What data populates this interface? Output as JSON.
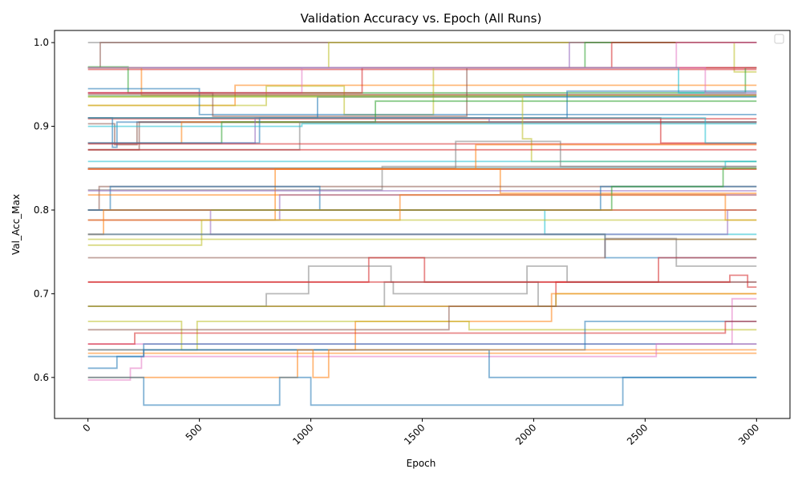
{
  "chart_data": {
    "type": "line",
    "title": "Validation Accuracy vs. Epoch (All Runs)",
    "xlabel": "Epoch",
    "ylabel": "Val_Acc_Max",
    "xlim": [
      -150,
      3150
    ],
    "ylim": [
      0.551,
      1.0145
    ],
    "x_ticks": [
      0,
      500,
      1000,
      1500,
      2000,
      2500,
      3000
    ],
    "x_tick_labels": [
      "0",
      "500",
      "1000",
      "1500",
      "2000",
      "2500",
      "3000"
    ],
    "y_ticks": [
      0.6,
      0.7,
      0.8,
      0.9,
      1.0
    ],
    "y_tick_labels": [
      "0.6",
      "0.7",
      "0.8",
      "0.9",
      "1.0"
    ],
    "grid": false,
    "legend": "top-right (empty)",
    "line_style": "step-post",
    "series_opacity": 0.55,
    "palette": [
      "#1f77b4",
      "#ff7f0e",
      "#2ca02c",
      "#d62728",
      "#9467bd",
      "#8c564b",
      "#e377c2",
      "#7f7f7f",
      "#bcbd22",
      "#17becf"
    ],
    "series": [
      {
        "color": "#7f7f7f",
        "x": [
          0,
          3000
        ],
        "values": [
          1.0,
          1.0
        ]
      },
      {
        "color": "#8c564b",
        "x": [
          0,
          55,
          3000
        ],
        "values": [
          0.97,
          1.0,
          1.0
        ]
      },
      {
        "color": "#bcbd22",
        "x": [
          0,
          1080,
          2900,
          3000
        ],
        "values": [
          0.97,
          1.0,
          0.965,
          0.965
        ]
      },
      {
        "color": "#9467bd",
        "x": [
          0,
          2160,
          3000
        ],
        "values": [
          0.97,
          1.0,
          1.0
        ]
      },
      {
        "color": "#2ca02c",
        "x": [
          0,
          2230,
          3000
        ],
        "values": [
          0.97,
          1.0,
          1.0
        ]
      },
      {
        "color": "#d62728",
        "x": [
          0,
          2350,
          3000
        ],
        "values": [
          0.97,
          1.0,
          1.0
        ]
      },
      {
        "color": "#e377c2",
        "x": [
          0,
          2640,
          3000
        ],
        "values": [
          0.97,
          1.0,
          1.0
        ]
      },
      {
        "color": "#d62728",
        "x": [
          0,
          3000
        ],
        "values": [
          0.968,
          0.968
        ]
      },
      {
        "color": "#2ca02c",
        "x": [
          0,
          180,
          2950,
          3000
        ],
        "values": [
          0.971,
          0.94,
          0.97,
          0.97
        ]
      },
      {
        "color": "#ff7f0e",
        "x": [
          0,
          240,
          3000
        ],
        "values": [
          0.97,
          0.937,
          0.937
        ]
      },
      {
        "color": "#ff7f0e",
        "x": [
          0,
          660,
          3000
        ],
        "values": [
          0.925,
          0.949,
          0.949
        ]
      },
      {
        "color": "#bcbd22",
        "x": [
          0,
          800,
          1150,
          1550,
          3000
        ],
        "values": [
          0.925,
          0.948,
          0.914,
          0.97,
          0.97
        ]
      },
      {
        "color": "#1f77b4",
        "x": [
          0,
          500,
          3000
        ],
        "values": [
          0.945,
          0.914,
          0.914
        ]
      },
      {
        "color": "#8c564b",
        "x": [
          0,
          560,
          1700,
          3000
        ],
        "values": [
          0.94,
          0.912,
          0.97,
          0.97
        ]
      },
      {
        "color": "#2ca02c",
        "x": [
          0,
          3000
        ],
        "values": [
          0.936,
          0.936
        ]
      },
      {
        "color": "#8c564b",
        "x": [
          0,
          3000
        ],
        "values": [
          0.938,
          0.938
        ]
      },
      {
        "color": "#d62728",
        "x": [
          0,
          3000
        ],
        "values": [
          0.909,
          0.909
        ]
      },
      {
        "color": "#e377c2",
        "x": [
          0,
          960,
          3000
        ],
        "values": [
          0.94,
          0.97,
          0.97
        ]
      },
      {
        "color": "#d62728",
        "x": [
          0,
          1230,
          3000
        ],
        "values": [
          0.94,
          0.97,
          0.97
        ]
      },
      {
        "color": "#17becf",
        "x": [
          0,
          2650,
          3000
        ],
        "values": [
          0.97,
          0.94,
          0.94
        ]
      },
      {
        "color": "#e377c2",
        "x": [
          0,
          2770,
          3000
        ],
        "values": [
          0.97,
          0.94,
          0.94
        ]
      },
      {
        "color": "#1f77b4",
        "x": [
          0,
          2150,
          3000
        ],
        "values": [
          0.91,
          0.942,
          0.942
        ]
      },
      {
        "color": "#8c564b",
        "x": [
          0,
          120,
          220,
          3000
        ],
        "values": [
          0.903,
          0.878,
          0.905,
          0.905
        ]
      },
      {
        "color": "#1f77b4",
        "x": [
          0,
          110,
          130,
          3000
        ],
        "values": [
          0.91,
          0.875,
          0.905,
          0.905
        ]
      },
      {
        "color": "#8c564b",
        "x": [
          0,
          230,
          3000
        ],
        "values": [
          0.872,
          0.905,
          0.905
        ]
      },
      {
        "color": "#ff7f0e",
        "x": [
          0,
          420,
          3000
        ],
        "values": [
          0.88,
          0.905,
          0.905
        ]
      },
      {
        "color": "#2ca02c",
        "x": [
          0,
          600,
          1290,
          3000
        ],
        "values": [
          0.88,
          0.905,
          0.93,
          0.93
        ]
      },
      {
        "color": "#9467bd",
        "x": [
          0,
          750,
          1800,
          3000
        ],
        "values": [
          0.88,
          0.91,
          0.905,
          0.905
        ]
      },
      {
        "color": "#1f77b4",
        "x": [
          0,
          770,
          1030,
          3000
        ],
        "values": [
          0.88,
          0.91,
          0.935,
          0.935
        ]
      },
      {
        "color": "#7f7f7f",
        "x": [
          0,
          950,
          3000
        ],
        "values": [
          0.872,
          0.905,
          0.905
        ]
      },
      {
        "color": "#17becf",
        "x": [
          0,
          960,
          3000
        ],
        "values": [
          0.9,
          0.903,
          0.903
        ]
      },
      {
        "color": "#d62728",
        "x": [
          0,
          2570,
          3000
        ],
        "values": [
          0.91,
          0.88,
          0.88
        ]
      },
      {
        "color": "#17becf",
        "x": [
          0,
          2770,
          3000
        ],
        "values": [
          0.91,
          0.88,
          0.88
        ]
      },
      {
        "color": "#bcbd22",
        "x": [
          0,
          1950,
          1990,
          3000
        ],
        "values": [
          0.935,
          0.885,
          0.858,
          0.858
        ]
      },
      {
        "color": "#d62728",
        "x": [
          0,
          3000
        ],
        "values": [
          0.879,
          0.879
        ]
      },
      {
        "color": "#d62728",
        "x": [
          0,
          3000
        ],
        "values": [
          0.872,
          0.872
        ]
      },
      {
        "color": "#17becf",
        "x": [
          0,
          3000
        ],
        "values": [
          0.858,
          0.858
        ]
      },
      {
        "color": "#1f77b4",
        "x": [
          0,
          180,
          3000
        ],
        "values": [
          0.849,
          0.849,
          0.849
        ]
      },
      {
        "color": "#17becf",
        "x": [
          0,
          2860,
          3000
        ],
        "values": [
          0.85,
          0.858,
          0.858
        ]
      },
      {
        "color": "#7f7f7f",
        "x": [
          0,
          1320,
          2120,
          3000
        ],
        "values": [
          0.824,
          0.852,
          0.852,
          0.852
        ]
      },
      {
        "color": "#7f7f7f",
        "x": [
          0,
          1650,
          2120,
          3000
        ],
        "values": [
          0.85,
          0.882,
          0.852,
          0.852
        ]
      },
      {
        "color": "#d62728",
        "x": [
          0,
          3000
        ],
        "values": [
          0.849,
          0.849
        ]
      },
      {
        "color": "#ff7f0e",
        "x": [
          0,
          1740,
          3000
        ],
        "values": [
          0.849,
          0.878,
          0.878
        ]
      },
      {
        "color": "#e377c2",
        "x": [
          0,
          2340,
          3000
        ],
        "values": [
          0.849,
          0.849,
          0.849
        ]
      },
      {
        "color": "#ff7f0e",
        "x": [
          0,
          840,
          3000
        ],
        "values": [
          0.788,
          0.849,
          0.849
        ]
      },
      {
        "color": "#ff7f0e",
        "x": [
          0,
          1850,
          3000
        ],
        "values": [
          0.849,
          0.82,
          0.82
        ]
      },
      {
        "color": "#8c564b",
        "x": [
          0,
          50,
          3000
        ],
        "values": [
          0.8,
          0.828,
          0.828
        ]
      },
      {
        "color": "#1f77b4",
        "x": [
          0,
          100,
          1040,
          3000
        ],
        "values": [
          0.8,
          0.828,
          0.8,
          0.8
        ]
      },
      {
        "color": "#ff7f0e",
        "x": [
          0,
          3000
        ],
        "values": [
          0.818,
          0.818
        ]
      },
      {
        "color": "#9467bd",
        "x": [
          0,
          860,
          3000
        ],
        "values": [
          0.788,
          0.818,
          0.818
        ]
      },
      {
        "color": "#9467bd",
        "x": [
          0,
          1660,
          3000
        ],
        "values": [
          0.823,
          0.823,
          0.823
        ]
      },
      {
        "color": "#e377c2",
        "x": [
          0,
          500,
          3000
        ],
        "values": [
          0.8,
          0.8,
          0.8
        ]
      },
      {
        "color": "#17becf",
        "x": [
          0,
          2050,
          3000
        ],
        "values": [
          0.8,
          0.771,
          0.771
        ]
      },
      {
        "color": "#1f77b4",
        "x": [
          0,
          2300,
          3000
        ],
        "values": [
          0.8,
          0.828,
          0.828
        ]
      },
      {
        "color": "#2ca02c",
        "x": [
          0,
          2350,
          2850,
          3000
        ],
        "values": [
          0.8,
          0.828,
          0.85,
          0.85
        ]
      },
      {
        "color": "#9467bd",
        "x": [
          0,
          550,
          2870,
          3000
        ],
        "values": [
          0.8,
          0.771,
          0.8,
          0.8
        ]
      },
      {
        "color": "#ff7f0e",
        "x": [
          0,
          1400,
          2860,
          3000
        ],
        "values": [
          0.788,
          0.818,
          0.788,
          0.788
        ]
      },
      {
        "color": "#ff7f0e",
        "x": [
          0,
          70,
          3000
        ],
        "values": [
          0.771,
          0.8,
          0.8
        ]
      },
      {
        "color": "#bcbd22",
        "x": [
          0,
          3000
        ],
        "values": [
          0.765,
          0.765
        ]
      },
      {
        "color": "#bcbd22",
        "x": [
          0,
          510,
          3000
        ],
        "values": [
          0.758,
          0.788,
          0.788
        ]
      },
      {
        "color": "#1f77b4",
        "x": [
          0,
          2320,
          3000
        ],
        "values": [
          0.771,
          0.743,
          0.743
        ]
      },
      {
        "color": "#7f7f7f",
        "x": [
          0,
          2320,
          2640,
          3000
        ],
        "values": [
          0.771,
          0.766,
          0.733,
          0.733
        ]
      },
      {
        "color": "#8c564b",
        "x": [
          0,
          2320,
          3000
        ],
        "values": [
          0.743,
          0.765,
          0.765
        ]
      },
      {
        "color": "#d62728",
        "x": [
          0,
          1260,
          1510,
          3000
        ],
        "values": [
          0.714,
          0.743,
          0.714,
          0.714
        ]
      },
      {
        "color": "#d62728",
        "x": [
          0,
          2100,
          2560,
          3000
        ],
        "values": [
          0.685,
          0.714,
          0.743,
          0.743
        ]
      },
      {
        "color": "#7f7f7f",
        "x": [
          0,
          1330,
          1370,
          1970,
          2150,
          3000
        ],
        "values": [
          0.685,
          0.714,
          0.7,
          0.733,
          0.714,
          0.714
        ]
      },
      {
        "color": "#7f7f7f",
        "x": [
          0,
          800,
          990,
          1360,
          2020,
          2140,
          3000
        ],
        "values": [
          0.685,
          0.7,
          0.733,
          0.714,
          0.685,
          0.685,
          0.685
        ]
      },
      {
        "color": "#d62728",
        "x": [
          0,
          2880,
          2960,
          3000
        ],
        "values": [
          0.714,
          0.722,
          0.708,
          0.708
        ]
      },
      {
        "color": "#bcbd22",
        "x": [
          0,
          2100,
          3000
        ],
        "values": [
          0.685,
          0.7,
          0.7
        ]
      },
      {
        "color": "#e377c2",
        "x": [
          0,
          2890,
          3000
        ],
        "values": [
          0.64,
          0.694,
          0.694
        ]
      },
      {
        "color": "#ff7f0e",
        "x": [
          0,
          1200,
          2080,
          2580,
          3000
        ],
        "values": [
          0.633,
          0.667,
          0.7,
          0.7,
          0.7
        ]
      },
      {
        "color": "#bcbd22",
        "x": [
          0,
          420,
          490,
          1710,
          3000
        ],
        "values": [
          0.667,
          0.633,
          0.667,
          0.657,
          0.657
        ]
      },
      {
        "color": "#8c564b",
        "x": [
          0,
          1620,
          3000
        ],
        "values": [
          0.657,
          0.685,
          0.685
        ]
      },
      {
        "color": "#1f77b4",
        "x": [
          0,
          2230,
          3000
        ],
        "values": [
          0.633,
          0.667,
          0.667
        ]
      },
      {
        "color": "#d62728",
        "x": [
          0,
          210,
          2860,
          3000
        ],
        "values": [
          0.64,
          0.653,
          0.667,
          0.667
        ]
      },
      {
        "color": "#1f77b4",
        "x": [
          0,
          250,
          3000
        ],
        "values": [
          0.625,
          0.64,
          0.64
        ]
      },
      {
        "color": "#ff7f0e",
        "x": [
          0,
          3000
        ],
        "values": [
          0.629,
          0.629
        ]
      },
      {
        "color": "#e377c2",
        "x": [
          0,
          190,
          240,
          2550,
          3000
        ],
        "values": [
          0.597,
          0.611,
          0.625,
          0.64,
          0.64
        ]
      },
      {
        "color": "#1f77b4",
        "x": [
          0,
          130,
          250,
          1800,
          2400,
          3000
        ],
        "values": [
          0.611,
          0.625,
          0.633,
          0.6,
          0.6,
          0.6
        ]
      },
      {
        "color": "#ff7f0e",
        "x": [
          0,
          280,
          940,
          1010,
          1080,
          3000
        ],
        "values": [
          0.6,
          0.6,
          0.633,
          0.6,
          0.633,
          0.633
        ]
      },
      {
        "color": "#1f77b4",
        "x": [
          0,
          250,
          860,
          1000,
          2400,
          3000
        ],
        "values": [
          0.6,
          0.567,
          0.6,
          0.567,
          0.6,
          0.6
        ]
      }
    ]
  }
}
